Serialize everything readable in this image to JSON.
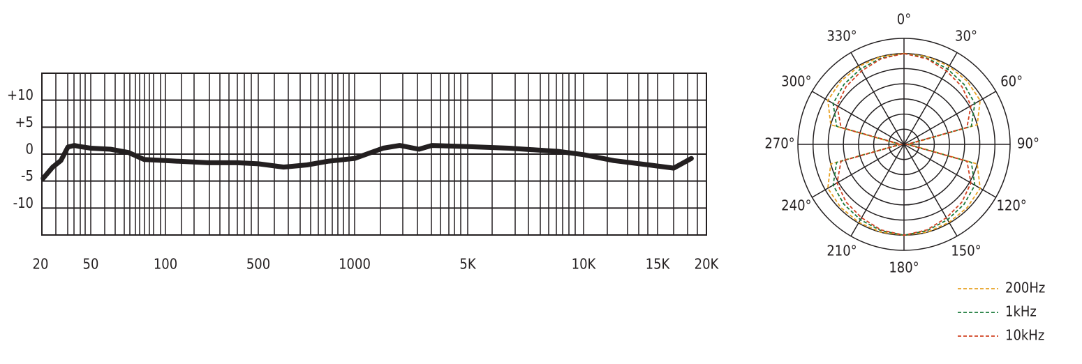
{
  "chart_data": [
    {
      "type": "line",
      "x": [
        21,
        25,
        29,
        33,
        37,
        41,
        50,
        60,
        71,
        82,
        100,
        210,
        350,
        500,
        600,
        710,
        830,
        1000,
        1500,
        1900,
        2500,
        3000,
        5000,
        6400,
        8600,
        10000,
        11800,
        14300,
        16500,
        18300
      ],
      "values": [
        -4.5,
        -2.4,
        -1.2,
        1.3,
        1.6,
        1.4,
        1.1,
        0.9,
        0.3,
        -1.0,
        -1.2,
        -1.6,
        -1.6,
        -1.8,
        -2.4,
        -2.0,
        -1.3,
        -0.8,
        1.1,
        1.6,
        0.9,
        1.6,
        1.4,
        1.1,
        0.5,
        -0.1,
        -1.2,
        -2.0,
        -2.6,
        -0.8
      ],
      "color": "#231f20",
      "xticks": [
        20,
        50,
        100,
        500,
        1000,
        {
          "value": 5000,
          "label": "5K"
        },
        {
          "value": 10000,
          "label": "10K"
        },
        {
          "value": 15000,
          "label": "15K"
        },
        {
          "value": 20000,
          "label": "20K"
        }
      ],
      "ylim": [
        -15,
        15
      ],
      "yticks": [
        {
          "value": 10,
          "label": "+10"
        },
        {
          "value": 5,
          "label": "+5"
        },
        0,
        -5,
        -10
      ],
      "grid": true
    },
    {
      "type": "polar",
      "theta": [
        0,
        15,
        30,
        45,
        60,
        75,
        90,
        105,
        120,
        135,
        150,
        165,
        180,
        195,
        210,
        225,
        240,
        255,
        270,
        285,
        300,
        315,
        330,
        345
      ],
      "thetaticks": [
        {
          "value": 0,
          "label": "0°"
        },
        {
          "value": 30,
          "label": "30°"
        },
        {
          "value": 60,
          "label": "60°"
        },
        {
          "value": 90,
          "label": "90°"
        },
        {
          "value": 120,
          "label": "120°"
        },
        {
          "value": 150,
          "label": "150°"
        },
        {
          "value": 180,
          "label": "180°"
        },
        {
          "value": 210,
          "label": "210°"
        },
        {
          "value": 240,
          "label": "240°"
        },
        {
          "value": 270,
          "label": "270°"
        },
        {
          "value": 300,
          "label": "300°"
        },
        {
          "value": 330,
          "label": "330°"
        }
      ],
      "rlim": [
        0,
        7
      ],
      "rticks": [
        1,
        2,
        3,
        4,
        5,
        6,
        7
      ],
      "legend": "lower right",
      "series": [
        {
          "name": "200Hz",
          "color": "#e8a020",
          "values": [
            6.0,
            6.0,
            5.95,
            5.9,
            5.8,
            5.0,
            0.3,
            5.0,
            5.8,
            5.9,
            5.95,
            6.0,
            6.0,
            6.0,
            5.95,
            5.9,
            5.8,
            5.0,
            0.3,
            5.0,
            5.8,
            5.9,
            5.95,
            6.0
          ]
        },
        {
          "name": "1kHz",
          "color": "#1a7a3a",
          "values": [
            6.0,
            5.9,
            5.75,
            5.6,
            5.4,
            4.6,
            0.2,
            4.6,
            5.4,
            5.6,
            5.75,
            5.9,
            6.0,
            5.9,
            5.75,
            5.6,
            5.4,
            4.6,
            0.2,
            4.6,
            5.4,
            5.6,
            5.75,
            5.9
          ]
        },
        {
          "name": "10kHz",
          "color": "#d04020",
          "values": [
            6.0,
            5.85,
            5.6,
            5.4,
            5.1,
            4.3,
            0.2,
            4.3,
            5.1,
            5.4,
            5.6,
            5.85,
            6.0,
            5.85,
            5.6,
            5.4,
            5.1,
            4.3,
            0.2,
            4.3,
            5.1,
            5.4,
            5.6,
            5.85
          ]
        }
      ]
    }
  ]
}
